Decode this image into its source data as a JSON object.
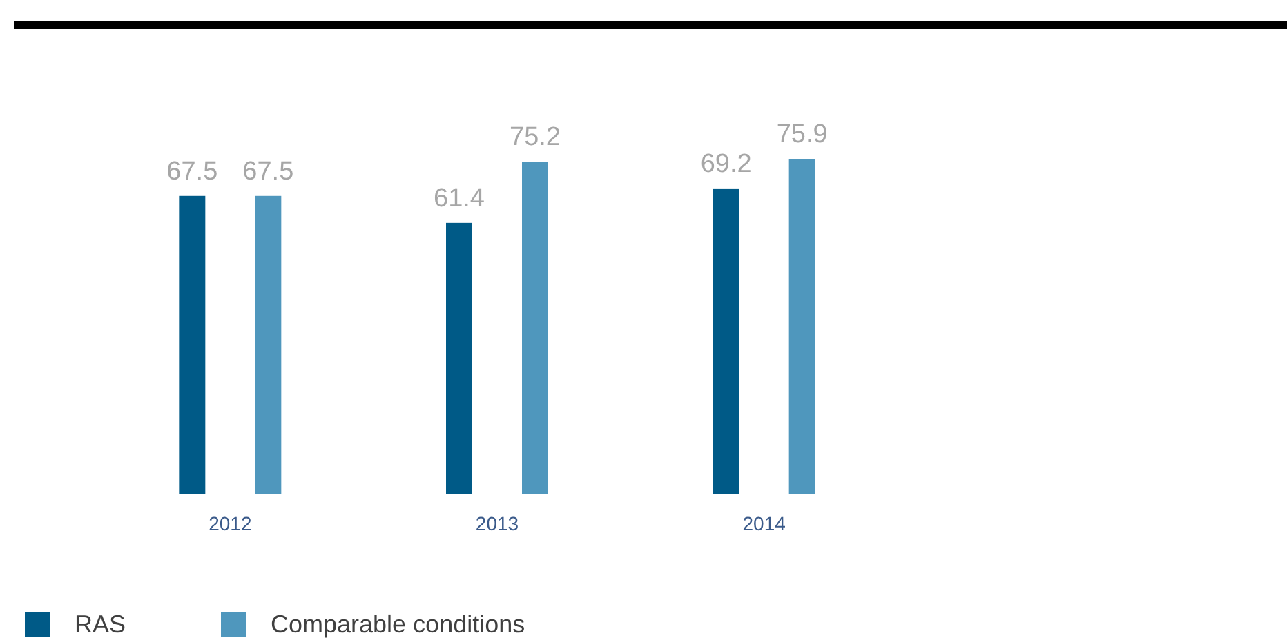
{
  "chart_data": {
    "type": "bar",
    "categories": [
      "2012",
      "2013",
      "2014"
    ],
    "series": [
      {
        "name": "RAS",
        "color": "#005a87",
        "values": [
          67.5,
          61.4,
          69.2
        ]
      },
      {
        "name": "Comparable conditions",
        "color": "#4f97bd",
        "values": [
          67.5,
          75.2,
          75.9
        ]
      }
    ],
    "data_labels": true,
    "legend": "bottom left",
    "grid": false
  }
}
